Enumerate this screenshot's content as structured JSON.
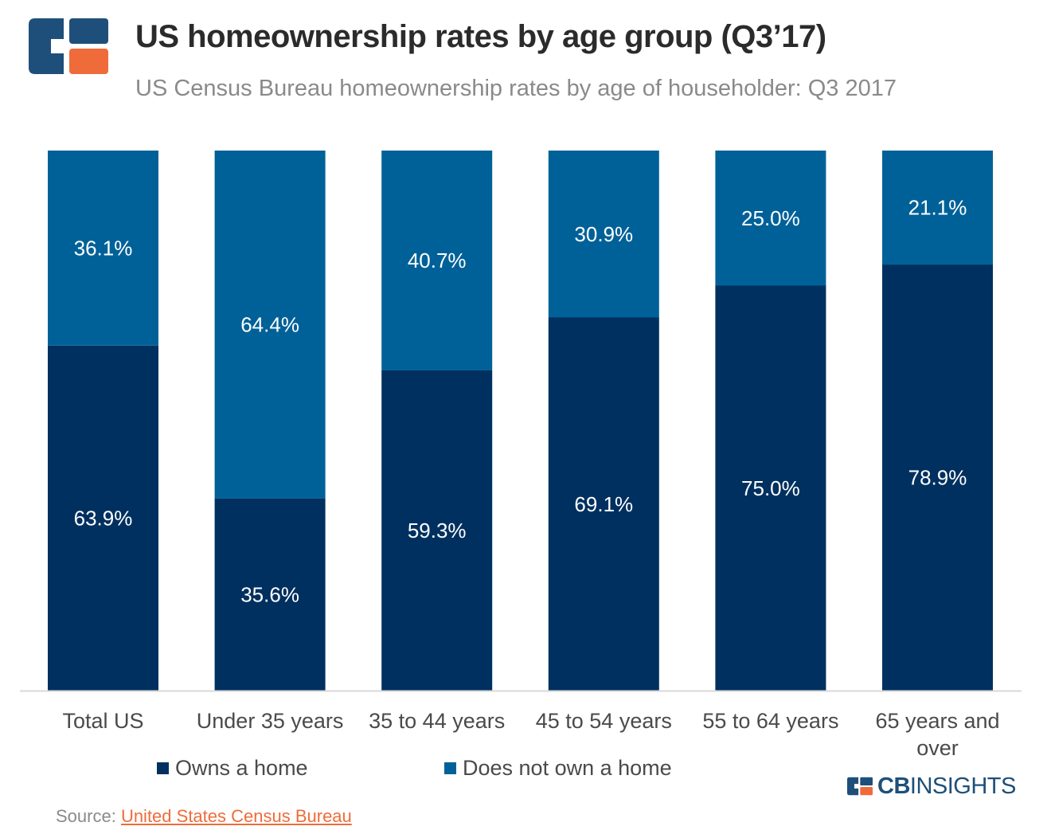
{
  "header": {
    "title": "US homeownership rates by age group (Q3’17)",
    "subtitle": "US Census Bureau homeownership rates by age of householder: Q3 2017"
  },
  "colors": {
    "owns": "#00305f",
    "not_owns": "#006198",
    "accent": "#ef6c3a",
    "axis": "#d9d9d9"
  },
  "chart_data": {
    "type": "bar",
    "stacked": true,
    "categories": [
      "Total US",
      "Under 35 years",
      "35 to 44 years",
      "45 to 54 years",
      "55 to 64 years",
      "65 years and over"
    ],
    "category_lines": [
      [
        "Total US"
      ],
      [
        "Under 35 years"
      ],
      [
        "35 to 44 years"
      ],
      [
        "45 to 54 years"
      ],
      [
        "55 to 64 years"
      ],
      [
        "65 years and",
        "over"
      ]
    ],
    "series": [
      {
        "name": "Owns a home",
        "values": [
          63.9,
          35.6,
          59.3,
          69.1,
          75.0,
          78.9
        ],
        "labels": [
          "63.9%",
          "35.6%",
          "59.3%",
          "69.1%",
          "75.0%",
          "78.9%"
        ]
      },
      {
        "name": "Does not own a home",
        "values": [
          36.1,
          64.4,
          40.7,
          30.9,
          25.0,
          21.1
        ],
        "labels": [
          "36.1%",
          "64.4%",
          "40.7%",
          "30.9%",
          "25.0%",
          "21.1%"
        ]
      }
    ],
    "ylim": [
      0,
      100
    ],
    "grid": false,
    "legend_position": "bottom"
  },
  "brand": {
    "cb": "CB",
    "insights": "INSIGHTS"
  },
  "source": {
    "prefix": "Source: ",
    "link": "United States Census Bureau"
  }
}
